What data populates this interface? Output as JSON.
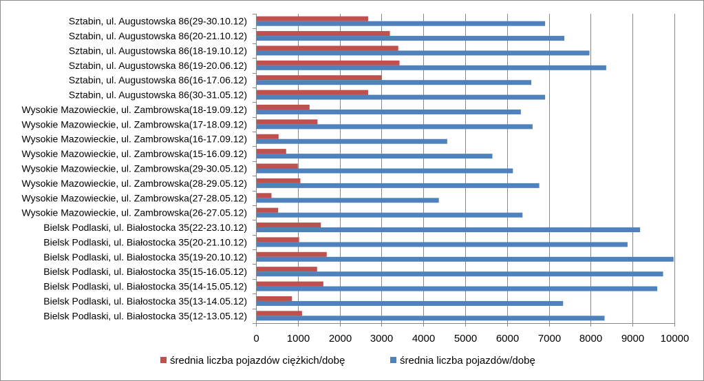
{
  "chart_data": {
    "type": "bar",
    "orientation": "horizontal",
    "categories": [
      "Sztabin, ul. Augustowska 86(29-30.10.12)",
      "Sztabin, ul. Augustowska 86(20-21.10.12)",
      "Sztabin, ul. Augustowska 86(18-19.10.12)",
      "Sztabin, ul. Augustowska 86(19-20.06.12)",
      "Sztabin, ul. Augustowska 86(16-17.06.12)",
      "Sztabin, ul. Augustowska 86(30-31.05.12)",
      "Wysokie Mazowieckie, ul. Zambrowska(18-19.09.12)",
      "Wysokie Mazowieckie, ul. Zambrowska(17-18.09.12)",
      "Wysokie Mazowieckie, ul. Zambrowska(16-17.09.12)",
      "Wysokie Mazowieckie, ul. Zambrowska(15-16.09.12)",
      "Wysokie Mazowieckie, ul. Zambrowska(29-30.05.12)",
      "Wysokie Mazowieckie, ul. Zambrowska(28-29.05.12)",
      "Wysokie Mazowieckie, ul. Zambrowska(27-28.05.12)",
      "Wysokie Mazowieckie, ul. Zambrowska(26-27.05.12)",
      "Bielsk Podlaski, ul. Białostocka 35(22-23.10.12)",
      "Bielsk Podlaski, ul. Białostocka 35(20-21.10.12)",
      "Bielsk Podlaski, ul. Białostocka 35(19-20.10.12)",
      "Bielsk Podlaski, ul. Białostocka 35(15-16.05.12)",
      "Bielsk Podlaski, ul. Białostocka 35(14-15.05.12)",
      "Bielsk Podlaski, ul. Białostocka 35(13-14.05.12)",
      "Bielsk Podlaski, ul. Białostocka 35(12-13.05.12)"
    ],
    "series": [
      {
        "name": "średnia liczba pojazdów ciężkich/dobę",
        "color": "#c0504d",
        "values": [
          2680,
          3200,
          3400,
          3430,
          3000,
          2680,
          1280,
          1470,
          540,
          720,
          1000,
          1060,
          370,
          530,
          1550,
          1030,
          1690,
          1460,
          1610,
          860,
          1100
        ]
      },
      {
        "name": "średnia liczba pojazdów/dobę",
        "color": "#4f81bd",
        "values": [
          6910,
          7370,
          7970,
          8370,
          6580,
          6910,
          6330,
          6610,
          4570,
          5650,
          6140,
          6770,
          4370,
          6370,
          9180,
          8880,
          9980,
          9730,
          9590,
          7340,
          8330
        ]
      }
    ],
    "xlim": [
      0,
      10000
    ],
    "xticks": [
      "0",
      "1000",
      "2000",
      "3000",
      "4000",
      "5000",
      "6000",
      "7000",
      "8000",
      "9000",
      "10000"
    ],
    "xticks_values": [
      0,
      1000,
      2000,
      3000,
      4000,
      5000,
      6000,
      7000,
      8000,
      9000,
      10000
    ],
    "grid": true,
    "legend_position": "bottom"
  }
}
